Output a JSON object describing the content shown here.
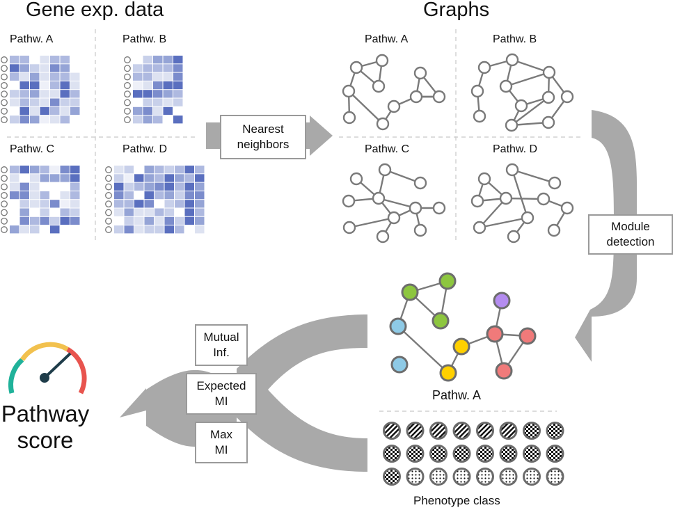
{
  "sections": {
    "gene_expression_title": "Gene exp. data",
    "graphs_title": "Graphs"
  },
  "heatmaps": [
    {
      "label": "Pathw. A"
    },
    {
      "label": "Pathw. B"
    },
    {
      "label": "Pathw. C"
    },
    {
      "label": "Pathw. D"
    }
  ],
  "graphs": [
    {
      "label": "Pathw. A"
    },
    {
      "label": "Pathw. B"
    },
    {
      "label": "Pathw. C"
    },
    {
      "label": "Pathw. D"
    }
  ],
  "steps": {
    "nearest_neighbors": {
      "line1": "Nearest",
      "line2": "neighbors"
    },
    "module_detection": {
      "line1": "Module",
      "line2": "detection"
    }
  },
  "module_graph_label": "Pathw. A",
  "phenotype_label": "Phenotype class",
  "mi_methods": [
    {
      "line1": "Mutual",
      "line2": "Inf."
    },
    {
      "line1": "Expected",
      "line2": "MI"
    },
    {
      "line1": "Max",
      "line2": "MI"
    }
  ],
  "score": {
    "line1": "Pathway",
    "line2": "score"
  },
  "colors": {
    "arrow": "#a9a9a9",
    "heat_light": "#e8ebf5",
    "heat_dark": "#5a6fbf",
    "node_green": "#8dc63f",
    "node_blue": "#8ecae6",
    "node_yellow": "#ffd000",
    "node_red": "#f07a7a",
    "node_purple": "#b48cf0",
    "gauge_teal": "#20b29a",
    "gauge_yellow": "#f2c14e",
    "gauge_red": "#e8544e"
  }
}
